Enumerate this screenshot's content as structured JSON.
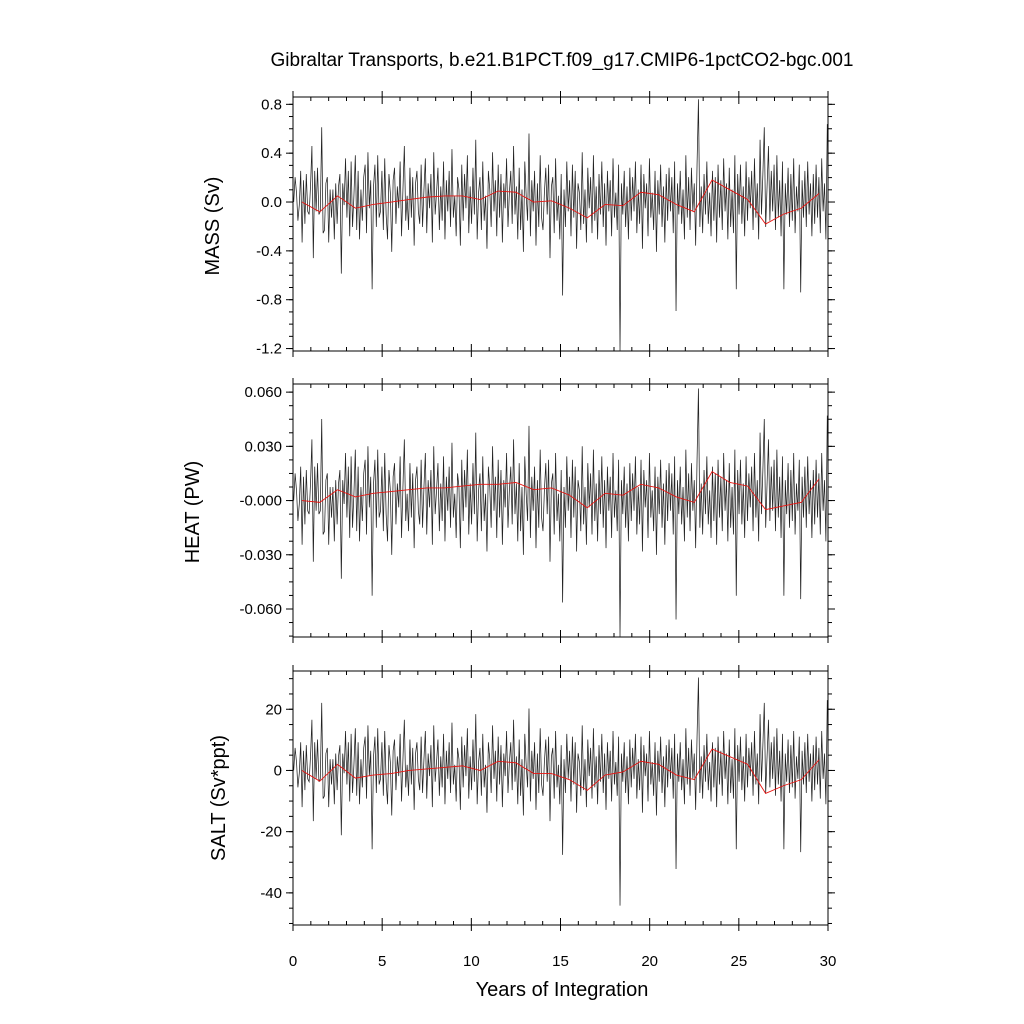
{
  "chart_data": {
    "type": "line",
    "title": "Gibraltar Transports, b.e21.B1PCT.f09_g17.CMIP6-1pctCO2-bgc.001",
    "xlabel": "Years of Integration",
    "xlim": [
      0,
      30
    ],
    "xticks": [
      0,
      5,
      10,
      15,
      20,
      25,
      30
    ],
    "xtick_labels": [
      "0",
      "5",
      "10",
      "15",
      "20",
      "25",
      "30"
    ],
    "panels": [
      {
        "ylabel": "MASS (Sv)",
        "ylim": [
          -1.22,
          0.86
        ],
        "yticks": [
          0.8,
          0.4,
          0.0,
          -0.4,
          -0.8,
          -1.2
        ],
        "ytick_labels": [
          "0.8",
          "0.4",
          "0.0",
          "-0.4",
          "-0.8",
          "-1.2"
        ],
        "scale": 0.0255,
        "offset": 0.0,
        "annual_mean": {
          "x": [
            0.5,
            1.5,
            2.5,
            3.5,
            4.5,
            5.5,
            6.5,
            7.5,
            8.5,
            9.5,
            10.5,
            11.5,
            12.5,
            13.5,
            14.5,
            15.5,
            16.5,
            17.5,
            18.5,
            19.5,
            20.5,
            21.5,
            22.5,
            23.5,
            24.5,
            25.5,
            26.5,
            27.5,
            28.5,
            29.5
          ],
          "y": [
            0.0,
            -0.08,
            0.05,
            -0.05,
            -0.02,
            0.0,
            0.02,
            0.04,
            0.05,
            0.05,
            0.02,
            0.09,
            0.08,
            0.0,
            0.01,
            -0.05,
            -0.13,
            -0.02,
            -0.03,
            0.08,
            0.06,
            -0.02,
            -0.08,
            0.18,
            0.1,
            0.02,
            -0.18,
            -0.1,
            -0.05,
            0.07
          ]
        }
      },
      {
        "ylabel": "HEAT (PW)",
        "ylim": [
          -0.0755,
          0.0645
        ],
        "yticks": [
          0.06,
          0.03,
          0.0,
          -0.03,
          -0.06
        ],
        "ytick_labels": [
          "0.060",
          "0.030",
          "-0.000",
          "-0.030",
          "-0.060"
        ],
        "scale": 0.00188,
        "offset": 0.0,
        "annual_mean": {
          "x": [
            0.5,
            1.5,
            2.5,
            3.5,
            4.5,
            5.5,
            6.5,
            7.5,
            8.5,
            9.5,
            10.5,
            11.5,
            12.5,
            13.5,
            14.5,
            15.5,
            16.5,
            17.5,
            18.5,
            19.5,
            20.5,
            21.5,
            22.5,
            23.5,
            24.5,
            25.5,
            26.5,
            27.5,
            28.5,
            29.5
          ],
          "y": [
            0.0,
            -0.001,
            0.006,
            0.002,
            0.004,
            0.005,
            0.006,
            0.007,
            0.007,
            0.008,
            0.009,
            0.009,
            0.01,
            0.006,
            0.007,
            0.003,
            -0.004,
            0.004,
            0.003,
            0.009,
            0.007,
            0.002,
            -0.001,
            0.016,
            0.01,
            0.008,
            -0.005,
            -0.003,
            -0.001,
            0.012
          ]
        }
      },
      {
        "ylabel": "SALT (Sv*ppt)",
        "ylim": [
          -50.5,
          32.5
        ],
        "yticks": [
          20,
          0,
          -20,
          -40
        ],
        "ytick_labels": [
          "20",
          "0",
          "-20",
          "-40"
        ],
        "scale": 0.92,
        "offset": 0.0,
        "annual_mean": {
          "x": [
            0.5,
            1.5,
            2.5,
            3.5,
            4.5,
            5.5,
            6.5,
            7.5,
            8.5,
            9.5,
            10.5,
            11.5,
            12.5,
            13.5,
            14.5,
            15.5,
            16.5,
            17.5,
            18.5,
            19.5,
            20.5,
            21.5,
            22.5,
            23.5,
            24.5,
            25.5,
            26.5,
            27.5,
            28.5,
            29.5
          ],
          "y": [
            0.0,
            -3.5,
            2.0,
            -2.5,
            -1.5,
            -1.0,
            0.0,
            0.5,
            1.0,
            1.5,
            0.0,
            3.0,
            2.5,
            -1.0,
            -1.0,
            -3.0,
            -6.5,
            -1.5,
            -0.5,
            3.0,
            2.0,
            -1.5,
            -3.0,
            7.0,
            4.5,
            2.0,
            -7.5,
            -5.0,
            -3.0,
            3.5
          ]
        }
      }
    ],
    "monthly_anomaly_index": [
      0,
      8,
      3,
      -6,
      -1,
      10,
      -13,
      7,
      -7,
      9,
      -3,
      -4,
      5,
      18,
      -18,
      10,
      -3,
      11,
      -4,
      -3,
      24,
      -10,
      -9,
      6,
      8,
      -13,
      4,
      -5,
      4,
      -12,
      6,
      -7,
      5,
      9,
      -23,
      6,
      -1,
      14,
      -5,
      10,
      -11,
      13,
      -8,
      2,
      15,
      -9,
      10,
      -12,
      4,
      -6,
      8,
      12,
      -10,
      16,
      -2,
      7,
      -28,
      5,
      12,
      -8,
      15,
      -5,
      -3,
      10,
      -9,
      14,
      -4,
      -12,
      9,
      3,
      -16,
      7,
      11,
      -7,
      5,
      -2,
      13,
      -11,
      4,
      18,
      -6,
      2,
      -9,
      11,
      -5,
      8,
      -14,
      6,
      10,
      -3,
      -7,
      12,
      -8,
      4,
      14,
      -10,
      6,
      -2,
      9,
      -13,
      16,
      -4,
      3,
      11,
      -9,
      5,
      -6,
      13,
      -12,
      7,
      -3,
      10,
      -8,
      17,
      -5,
      2,
      -11,
      8,
      4,
      -14,
      12,
      -6,
      9,
      -2,
      15,
      -10,
      5,
      -7,
      11,
      -4,
      20,
      -12,
      3,
      8,
      -9,
      13,
      -6,
      2,
      -15,
      10,
      4,
      -8,
      16,
      -3,
      7,
      -11,
      12,
      -5,
      9,
      -13,
      6,
      -2,
      14,
      -8,
      3,
      10,
      -7,
      18,
      -4,
      5,
      -12,
      11,
      -9,
      4,
      -16,
      13,
      2,
      -6,
      22,
      -11,
      7,
      -3,
      10,
      -14,
      6,
      -8,
      15,
      -5,
      -9,
      3,
      11,
      -4,
      12,
      -18,
      5,
      8,
      -10,
      14,
      -6,
      2,
      -12,
      9,
      -30,
      4,
      -8,
      13,
      -3,
      7,
      -11,
      12,
      -5,
      10,
      -15,
      6,
      3,
      -9,
      16,
      -7,
      4,
      -13,
      11,
      -2,
      8,
      -10,
      15,
      -6,
      5,
      -12,
      9,
      -4,
      13,
      -8,
      6,
      -14,
      10,
      -3,
      7,
      -11,
      14,
      -5,
      3,
      -9,
      12,
      -48,
      6,
      -4,
      10,
      -8,
      5,
      -12,
      11,
      -6,
      8,
      -3,
      13,
      -10,
      4,
      -7,
      12,
      -15,
      9,
      -2,
      6,
      -11,
      14,
      -5,
      3,
      -9,
      10,
      -16,
      7,
      -4,
      12,
      -8,
      5,
      -13,
      9,
      -6,
      11,
      -3,
      8,
      -10,
      13,
      -35,
      6,
      -4,
      10,
      -7,
      4,
      -12,
      15,
      -5,
      8,
      -9,
      11,
      -3,
      6,
      -14,
      12,
      33,
      -8,
      5,
      -10,
      9,
      -4,
      13,
      -7,
      3,
      -11,
      10,
      -6,
      8,
      -13,
      12,
      -5,
      7,
      -9,
      14,
      -3,
      6,
      -12,
      11,
      -8,
      4,
      -10,
      15,
      -28,
      9,
      -4,
      12,
      -7,
      5,
      -11,
      13,
      -6,
      8,
      -2,
      10,
      -9,
      14,
      -5,
      6,
      -12,
      20,
      -4,
      9,
      24,
      -8,
      5,
      18,
      -6,
      10,
      -3,
      12,
      -9,
      15,
      -5,
      7,
      -11,
      13,
      -28,
      6,
      -4,
      11,
      -8,
      9,
      -6,
      14,
      -10,
      5,
      -3,
      12,
      -29,
      7,
      -5,
      10,
      -8,
      13,
      -4,
      6,
      -11,
      9,
      -7,
      12,
      -5,
      8,
      -10,
      14,
      -3,
      6,
      -12,
      25
    ]
  }
}
